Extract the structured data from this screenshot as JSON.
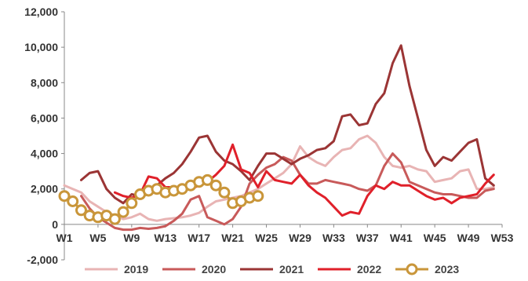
{
  "chart_data": {
    "type": "line",
    "title": "",
    "xlabel": "",
    "ylabel": "",
    "ylim": [
      -2000,
      12000
    ],
    "xlim": [
      1,
      53
    ],
    "y_ticks": [
      "12,000",
      "10,000",
      "8,000",
      "6,000",
      "4,000",
      "2,000",
      "0",
      "-2,000"
    ],
    "y_tick_values": [
      12000,
      10000,
      8000,
      6000,
      4000,
      2000,
      0,
      -2000
    ],
    "x_ticks": [
      "W1",
      "W5",
      "W9",
      "W13",
      "W17",
      "W21",
      "W25",
      "W29",
      "W33",
      "W37",
      "W41",
      "W45",
      "W49",
      "W53"
    ],
    "x_tick_values": [
      1,
      5,
      9,
      13,
      17,
      21,
      25,
      29,
      33,
      37,
      41,
      45,
      49,
      53
    ],
    "grid": false,
    "legend_position": "bottom",
    "series": [
      {
        "name": "2019",
        "color": "#e8b4b4",
        "x": [
          1,
          2,
          3,
          4,
          5,
          6,
          7,
          8,
          9,
          10,
          11,
          12,
          13,
          14,
          15,
          16,
          17,
          18,
          19,
          20,
          21,
          22,
          23,
          24,
          25,
          26,
          27,
          28,
          29,
          30,
          31,
          32,
          33,
          34,
          35,
          36,
          37,
          38,
          39,
          40,
          41,
          42,
          43,
          44,
          45,
          46,
          47,
          48,
          49,
          50,
          51,
          52
        ],
        "y": [
          2200,
          2000,
          1800,
          1300,
          1000,
          700,
          500,
          300,
          400,
          600,
          300,
          200,
          300,
          350,
          400,
          500,
          650,
          1000,
          1300,
          1400,
          1500,
          1600,
          1800,
          2000,
          2300,
          2600,
          2900,
          3400,
          4400,
          3800,
          3500,
          3300,
          3800,
          4200,
          4300,
          4800,
          5000,
          4600,
          3800,
          3300,
          3200,
          3300,
          3100,
          3000,
          2400,
          2500,
          2600,
          3000,
          3100,
          2000,
          2000,
          2100
        ]
      },
      {
        "name": "2020",
        "color": "#c85a5a",
        "x": [
          3,
          4,
          5,
          6,
          7,
          8,
          9,
          10,
          11,
          12,
          13,
          14,
          15,
          16,
          17,
          18,
          19,
          20,
          21,
          22,
          23,
          24,
          25,
          26,
          27,
          28,
          29,
          30,
          31,
          32,
          33,
          34,
          35,
          36,
          37,
          38,
          39,
          40,
          41,
          42,
          43,
          44,
          45,
          46,
          47,
          48,
          49,
          50,
          51,
          52
        ],
        "y": [
          1600,
          900,
          400,
          100,
          -200,
          -300,
          -300,
          -200,
          -250,
          -200,
          -100,
          200,
          600,
          1400,
          1600,
          400,
          200,
          0,
          300,
          1000,
          2300,
          2800,
          3200,
          3400,
          3800,
          3600,
          2800,
          2300,
          2300,
          2500,
          2400,
          2300,
          2200,
          2000,
          1900,
          2200,
          3300,
          4000,
          3500,
          2400,
          2200,
          2000,
          1800,
          1700,
          1700,
          1600,
          1500,
          1500,
          1900,
          2000
        ]
      },
      {
        "name": "2021",
        "color": "#9b3535",
        "x": [
          3,
          4,
          5,
          6,
          7,
          8,
          9,
          10,
          11,
          12,
          13,
          14,
          15,
          16,
          17,
          18,
          19,
          20,
          21,
          22,
          23,
          24,
          25,
          26,
          27,
          28,
          29,
          30,
          31,
          32,
          33,
          34,
          35,
          36,
          37,
          38,
          39,
          40,
          41,
          42,
          43,
          44,
          45,
          46,
          47,
          48,
          49,
          50,
          51,
          52
        ],
        "y": [
          2500,
          2900,
          3000,
          2000,
          1500,
          1200,
          1700,
          1600,
          1700,
          2200,
          2600,
          2900,
          3400,
          4100,
          4900,
          5000,
          4100,
          3600,
          3400,
          3000,
          2500,
          3300,
          4000,
          4000,
          3700,
          3400,
          3700,
          3900,
          4200,
          4300,
          4700,
          6100,
          6200,
          5600,
          5700,
          6800,
          7400,
          9100,
          10100,
          7800,
          6000,
          4200,
          3300,
          3800,
          3600,
          4100,
          4600,
          4800,
          2600,
          2200
        ]
      },
      {
        "name": "2022",
        "color": "#e0202a",
        "x": [
          7,
          8,
          9,
          10,
          11,
          12,
          13,
          14,
          15,
          16,
          17,
          18,
          19,
          20,
          21,
          22,
          23,
          24,
          25,
          26,
          27,
          28,
          29,
          30,
          31,
          32,
          33,
          34,
          35,
          36,
          37,
          38,
          39,
          40,
          41,
          42,
          43,
          44,
          45,
          46,
          47,
          48,
          49,
          50,
          51,
          52
        ],
        "y": [
          1800,
          1600,
          1500,
          1700,
          2700,
          2600,
          2100,
          2100,
          1900,
          2000,
          2200,
          2400,
          2800,
          3300,
          4500,
          3100,
          2900,
          2100,
          3000,
          2500,
          2400,
          2300,
          2800,
          2200,
          1800,
          1500,
          1000,
          500,
          700,
          600,
          1600,
          2200,
          2000,
          2400,
          2200,
          2200,
          1900,
          1600,
          1400,
          1500,
          1200,
          1500,
          1600,
          1700,
          2300,
          2800
        ]
      },
      {
        "name": "2023",
        "color": "#c9963a",
        "x": [
          1,
          2,
          3,
          4,
          5,
          6,
          7,
          8,
          9,
          10,
          11,
          12,
          13,
          14,
          15,
          16,
          17,
          18,
          19,
          20,
          21,
          22,
          23,
          24
        ],
        "y": [
          1600,
          1300,
          800,
          500,
          400,
          500,
          300,
          700,
          1200,
          1700,
          1900,
          2000,
          1800,
          1900,
          2000,
          2200,
          2400,
          2500,
          2200,
          1800,
          1200,
          1300,
          1500,
          1600
        ]
      }
    ]
  }
}
